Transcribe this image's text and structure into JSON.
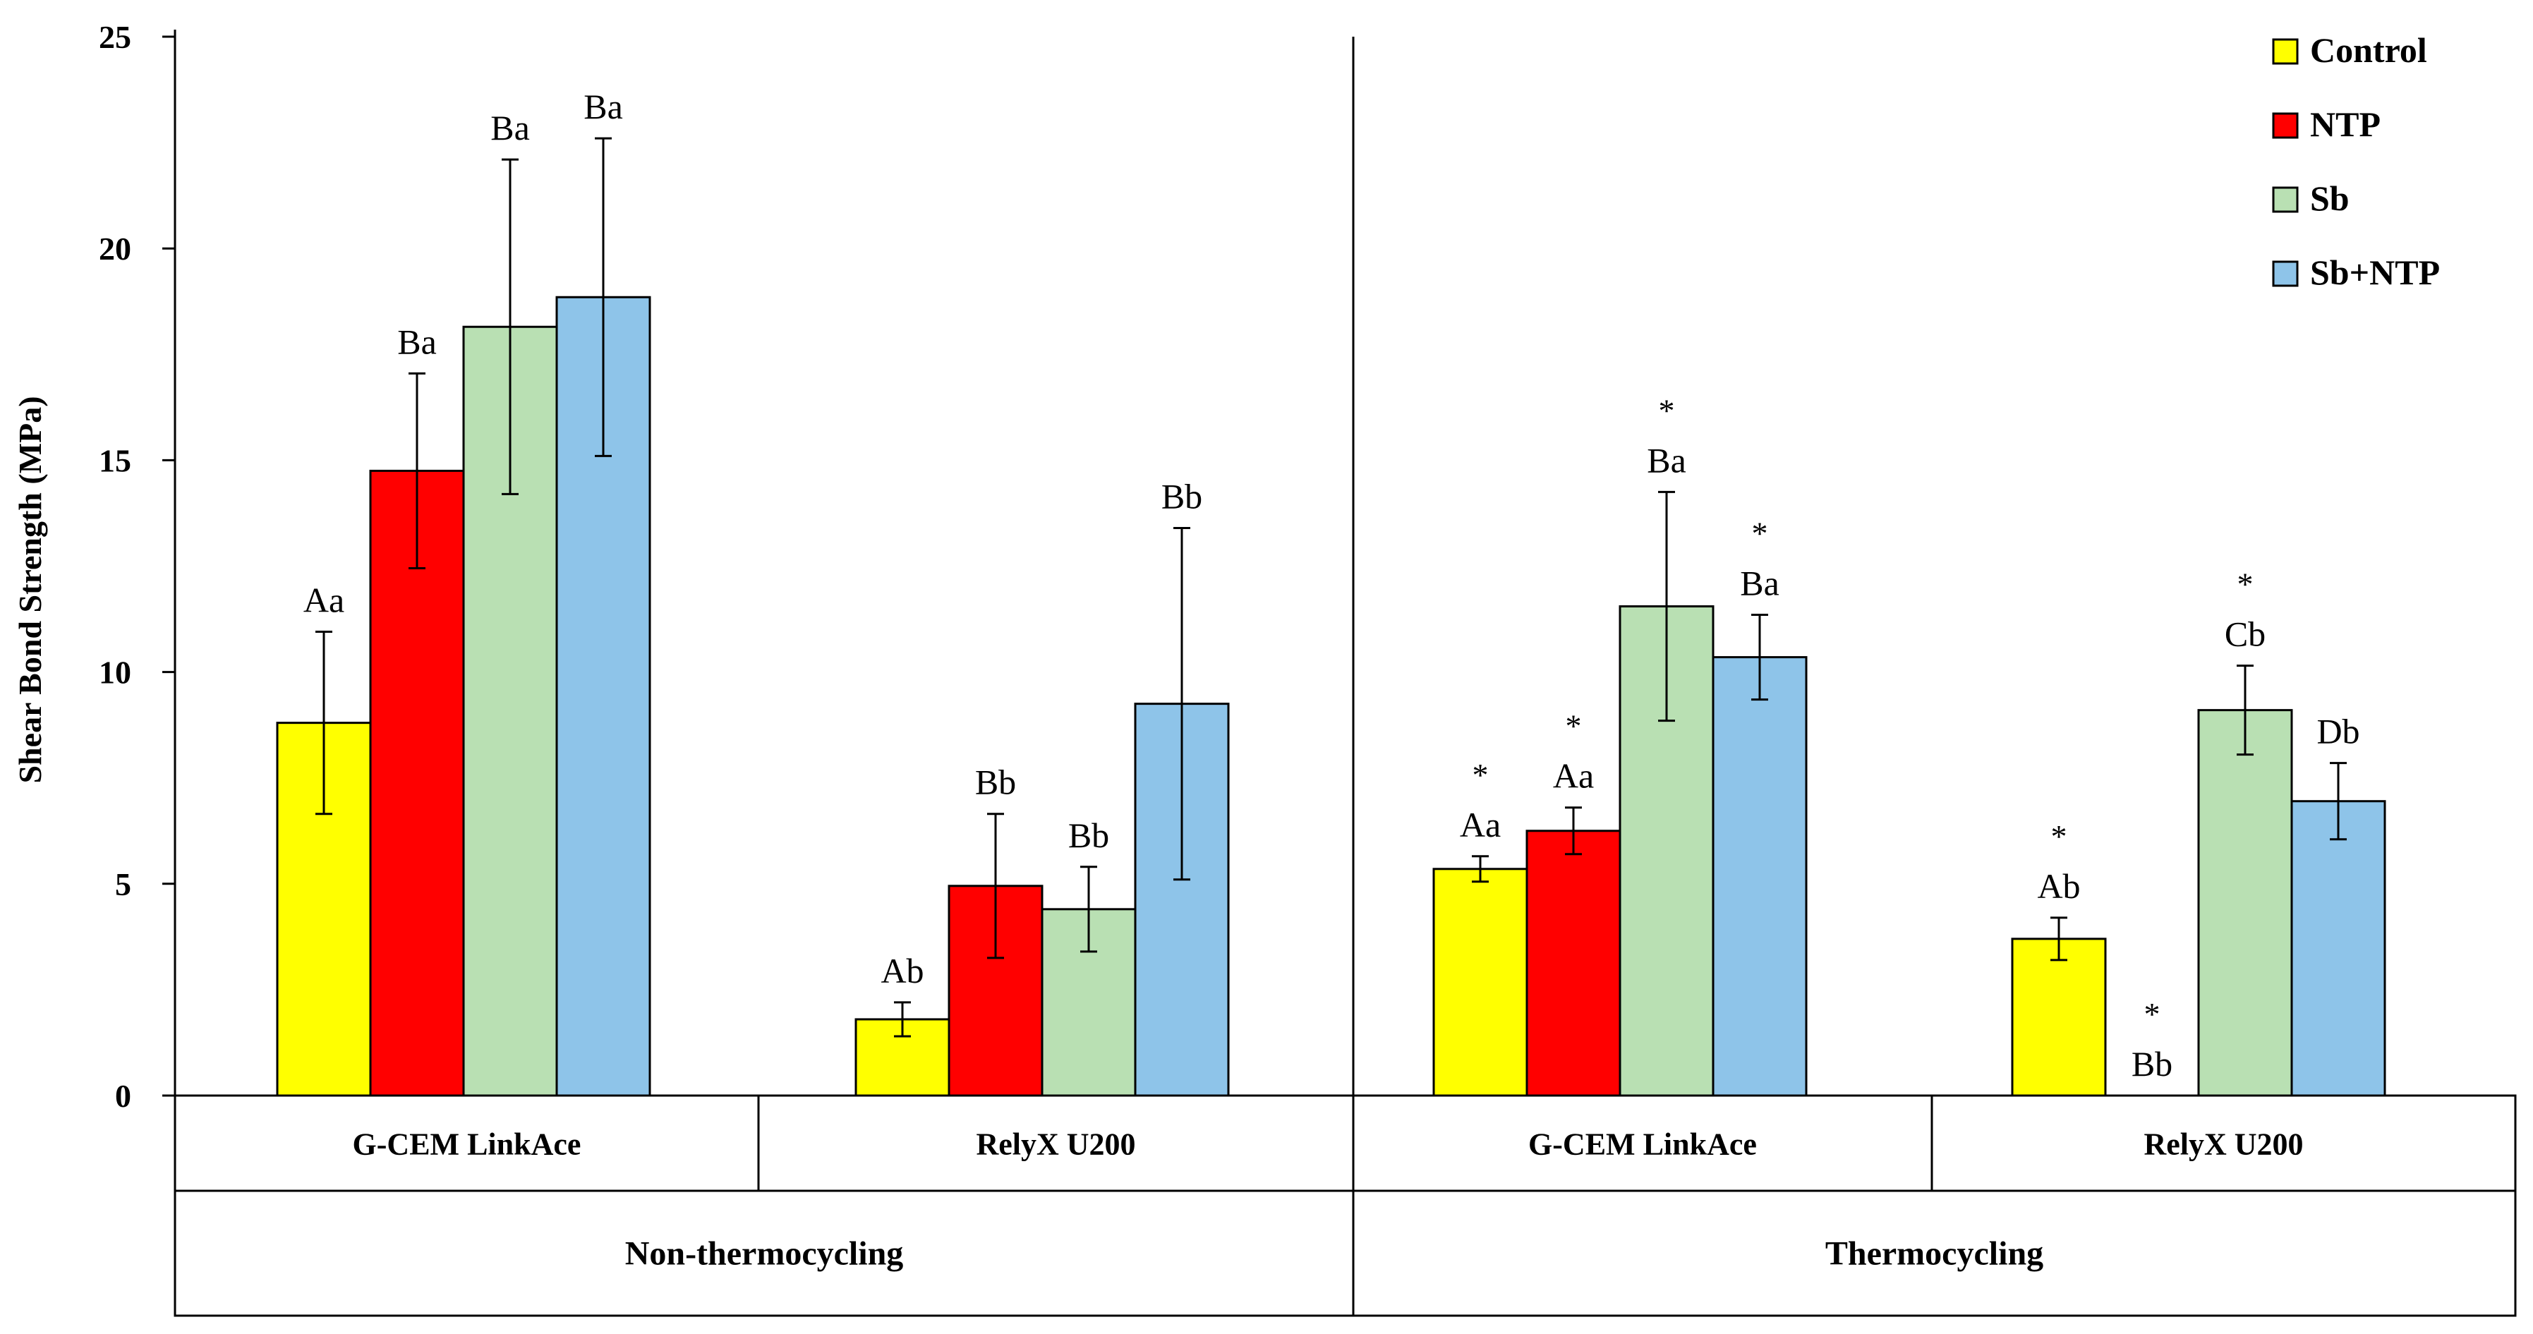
{
  "chart_data": {
    "type": "bar",
    "ylabel": "Shear Bond Strength (MPa)",
    "ylim": [
      0,
      25
    ],
    "yticks": [
      "0",
      "5",
      "10",
      "15",
      "20",
      "25"
    ],
    "legend": {
      "position": "top-right",
      "entries": [
        "Control",
        "NTP",
        "Sb",
        "Sb+NTP"
      ]
    },
    "colors": {
      "Control": "#ffff00",
      "NTP": "#ff0000",
      "Sb": "#b9e0b3",
      "Sb+NTP": "#8ec4e9"
    },
    "series_names": [
      "Control",
      "NTP",
      "Sb",
      "Sb+NTP"
    ],
    "groups": [
      {
        "condition": "Non-thermocycling",
        "cement": "G-CEM LinkAce",
        "values": [
          8.8,
          14.75,
          18.15,
          18.85
        ],
        "errors": [
          2.15,
          2.3,
          3.95,
          3.75
        ],
        "labels": [
          "Aa",
          "Ba",
          "Ba",
          "Ba"
        ],
        "star": [
          false,
          false,
          false,
          false
        ]
      },
      {
        "condition": "Non-thermocycling",
        "cement": "RelyX U200",
        "values": [
          1.8,
          4.95,
          4.4,
          9.25
        ],
        "errors": [
          0.4,
          1.7,
          1.0,
          4.15
        ],
        "labels": [
          "Ab",
          "Bb",
          "Bb",
          "Bb"
        ],
        "star": [
          false,
          false,
          false,
          false
        ]
      },
      {
        "condition": "Thermocycling",
        "cement": "G-CEM LinkAce",
        "values": [
          5.35,
          6.25,
          11.55,
          10.35
        ],
        "errors": [
          0.3,
          0.55,
          2.7,
          1.0
        ],
        "labels": [
          "Aa",
          "Aa",
          "Ba",
          "Ba"
        ],
        "star": [
          true,
          true,
          true,
          true
        ]
      },
      {
        "condition": "Thermocycling",
        "cement": "RelyX U200",
        "values": [
          3.7,
          0,
          9.1,
          6.95
        ],
        "errors": [
          0.5,
          0,
          1.05,
          0.9
        ],
        "labels": [
          "Ab",
          "Bb",
          "Cb",
          "Db"
        ],
        "star": [
          true,
          true,
          true,
          false
        ]
      }
    ],
    "conditions": [
      "Non-thermocycling",
      "Thermocycling"
    ]
  }
}
